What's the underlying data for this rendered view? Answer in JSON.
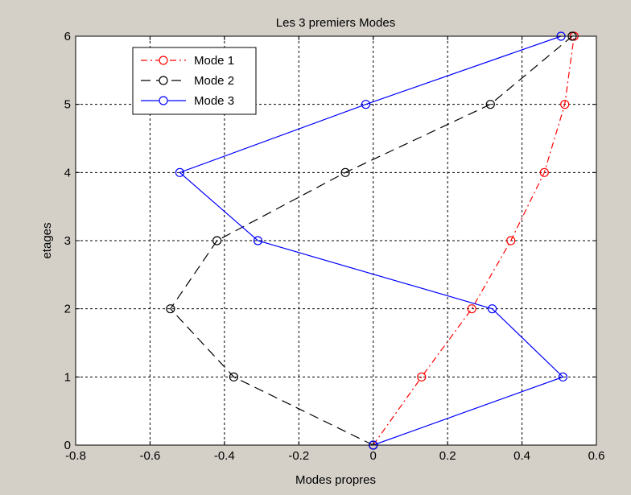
{
  "chart_data": {
    "type": "line",
    "title": "Les 3 premiers Modes",
    "xlabel": "Modes propres",
    "ylabel": "etages",
    "xlim": [
      -0.8,
      0.6
    ],
    "ylim": [
      0,
      6
    ],
    "x_ticks": [
      "-0.8",
      "-0.6",
      "-0.4",
      "-0.2",
      "0",
      "0.2",
      "0.4",
      "0.6"
    ],
    "y_ticks": [
      "0",
      "1",
      "2",
      "3",
      "4",
      "5",
      "6"
    ],
    "grid": true,
    "legend_position": "top-left",
    "series": [
      {
        "name": "Mode 1",
        "color": "#ff0000",
        "line_style": "dash-dot",
        "marker": "circle",
        "x": [
          0,
          0.13,
          0.265,
          0.37,
          0.46,
          0.515,
          0.54
        ],
        "y": [
          0,
          1,
          2,
          3,
          4,
          5,
          6
        ]
      },
      {
        "name": "Mode 2",
        "color": "#000000",
        "line_style": "dash",
        "marker": "circle",
        "x": [
          0,
          -0.375,
          -0.545,
          -0.42,
          -0.075,
          0.315,
          0.535
        ],
        "y": [
          0,
          1,
          2,
          3,
          4,
          5,
          6
        ]
      },
      {
        "name": "Mode 3",
        "color": "#0000ff",
        "line_style": "solid",
        "marker": "circle",
        "x": [
          0,
          0.51,
          0.32,
          -0.31,
          -0.52,
          -0.02,
          0.505
        ],
        "y": [
          0,
          1,
          2,
          3,
          4,
          5,
          6
        ]
      }
    ]
  }
}
